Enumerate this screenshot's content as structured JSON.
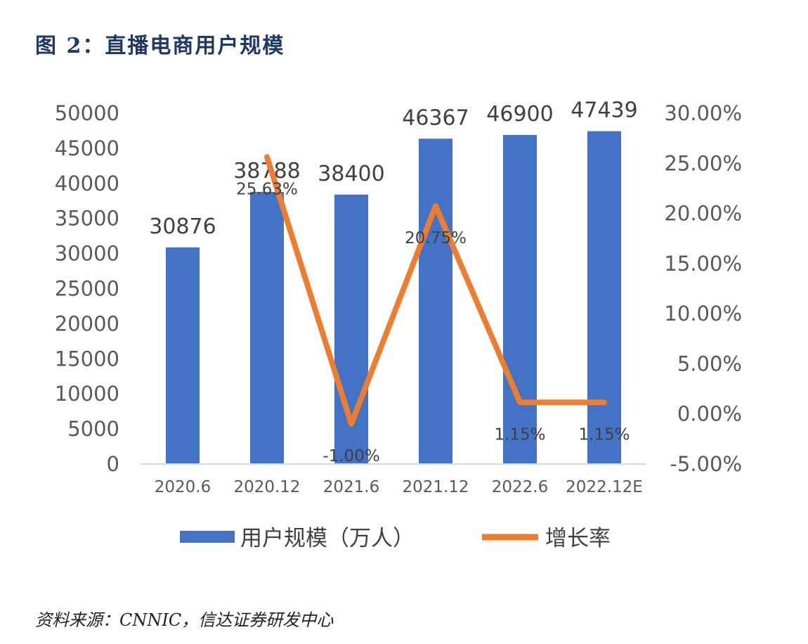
{
  "figure": {
    "title": "图 2：直播电商用户规模",
    "source": "资料来源：CNNIC，信达证券研发中心"
  },
  "chart_data": {
    "type": "bar",
    "title": "",
    "categories": [
      "2020.6",
      "2020.12",
      "2021.6",
      "2021.12",
      "2022.6",
      "2022.12E"
    ],
    "series": [
      {
        "name": "用户规模（万人）",
        "type": "bar",
        "axis": "left",
        "values": [
          30876,
          38788,
          38400,
          46367,
          46900,
          47439
        ],
        "labels": [
          "30876",
          "38788",
          "38400",
          "46367",
          "46900",
          "47439"
        ],
        "color": "#4472c4"
      },
      {
        "name": "增长率",
        "type": "line",
        "axis": "right",
        "values": [
          null,
          25.63,
          -1.0,
          20.75,
          1.15,
          1.15
        ],
        "labels": [
          null,
          "25.63%",
          "-1.00%",
          "20.75%",
          "1.15%",
          "1.15%"
        ],
        "color": "#ed7d31"
      }
    ],
    "y_left": {
      "min": 0,
      "max": 50000,
      "step": 5000,
      "ticks": [
        "0",
        "5000",
        "10000",
        "15000",
        "20000",
        "25000",
        "30000",
        "35000",
        "40000",
        "45000",
        "50000"
      ]
    },
    "y_right": {
      "min": -5,
      "max": 30,
      "step": 5,
      "ticks": [
        "-5.00%",
        "0.00%",
        "5.00%",
        "10.00%",
        "15.00%",
        "20.00%",
        "25.00%",
        "30.00%"
      ]
    },
    "legend_position": "bottom",
    "grid": false
  }
}
